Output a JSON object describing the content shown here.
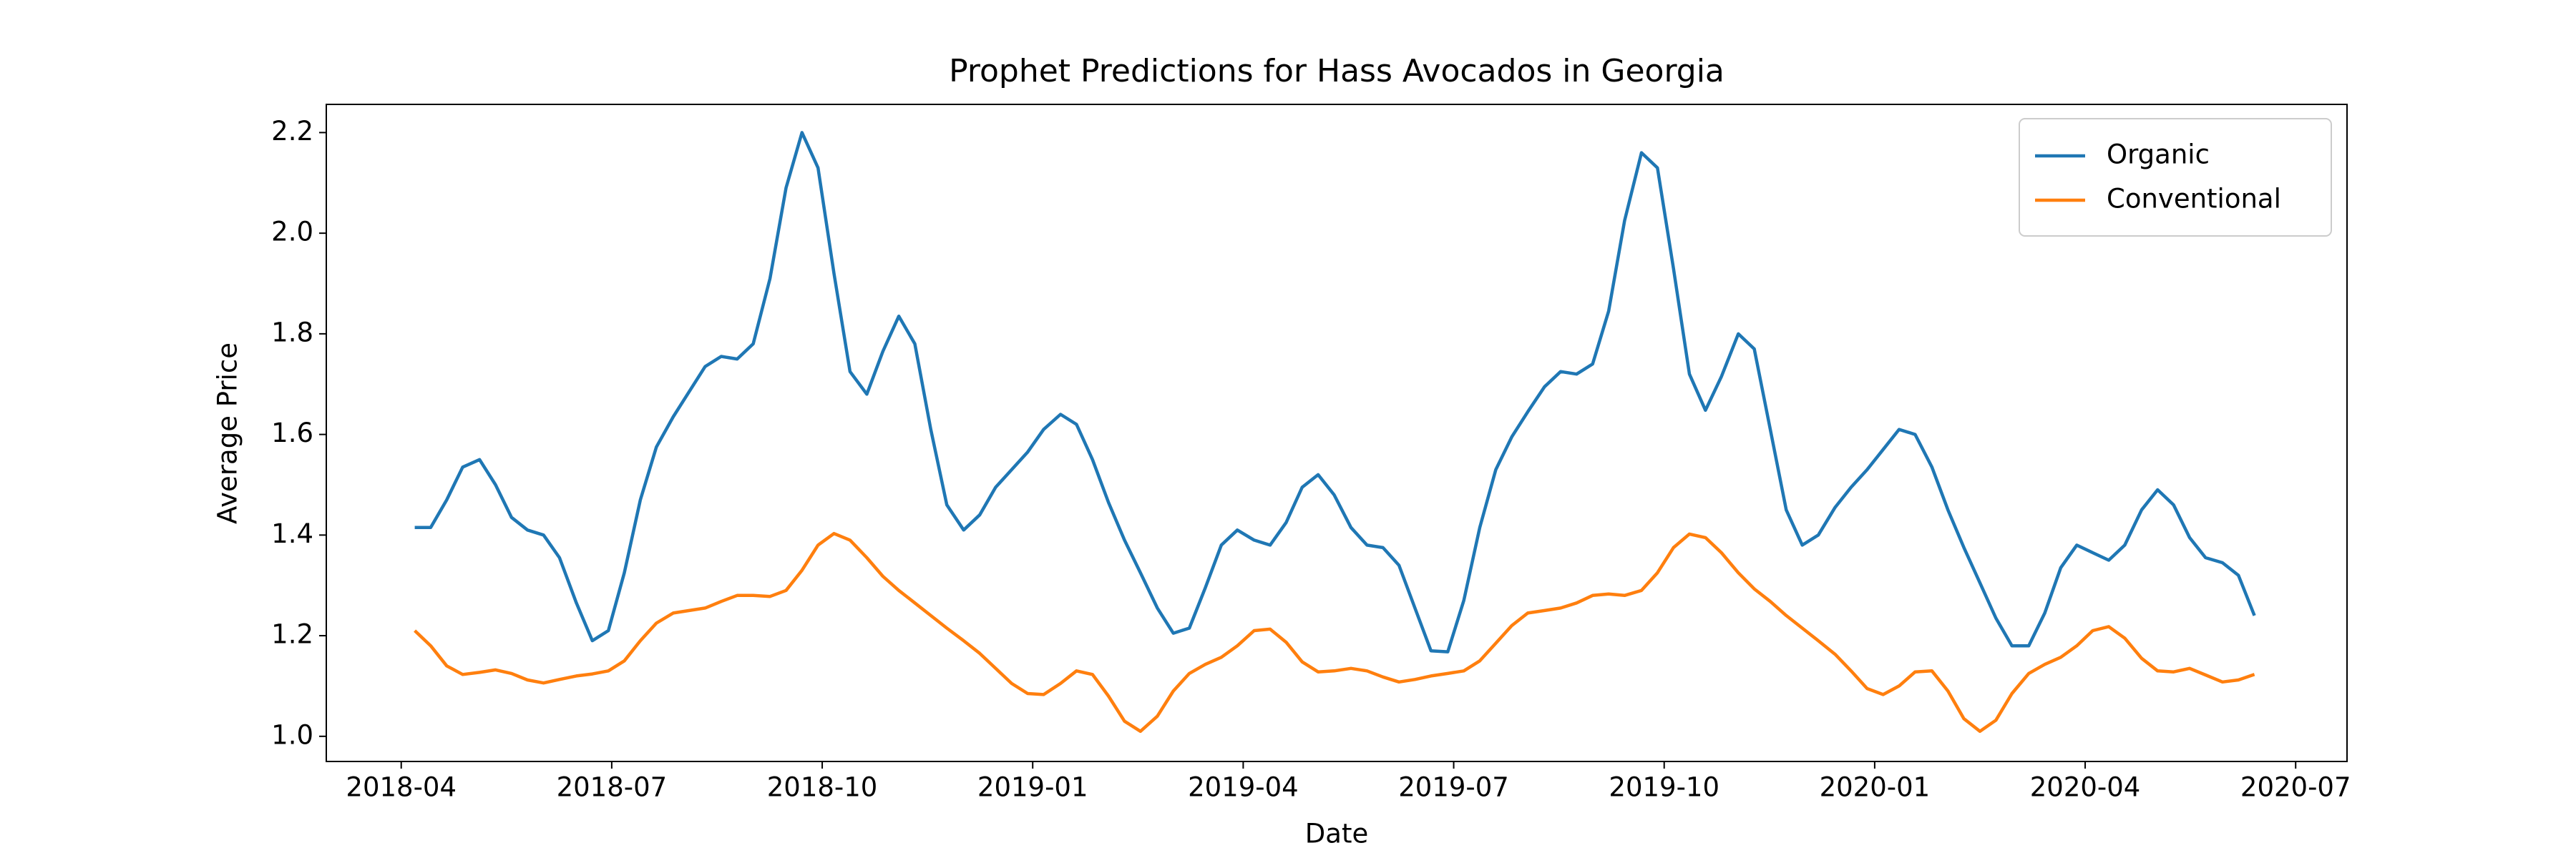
{
  "chart_data": {
    "type": "line",
    "title": "Prophet Predictions for Hass Avocados in Georgia",
    "x_label": "Date",
    "y_label": "Average Price",
    "x": [
      2018.266,
      2018.285,
      2018.304,
      2018.323,
      2018.343,
      2018.362,
      2018.381,
      2018.4,
      2018.419,
      2018.438,
      2018.458,
      2018.477,
      2018.496,
      2018.515,
      2018.534,
      2018.553,
      2018.573,
      2018.592,
      2018.611,
      2018.63,
      2018.649,
      2018.668,
      2018.688,
      2018.707,
      2018.726,
      2018.745,
      2018.764,
      2018.783,
      2018.803,
      2018.822,
      2018.841,
      2018.86,
      2018.879,
      2018.898,
      2018.918,
      2018.937,
      2018.956,
      2018.975,
      2018.994,
      2019.013,
      2019.033,
      2019.052,
      2019.071,
      2019.09,
      2019.109,
      2019.128,
      2019.148,
      2019.167,
      2019.186,
      2019.205,
      2019.224,
      2019.243,
      2019.263,
      2019.282,
      2019.301,
      2019.32,
      2019.339,
      2019.358,
      2019.378,
      2019.397,
      2019.416,
      2019.435,
      2019.454,
      2019.473,
      2019.493,
      2019.512,
      2019.531,
      2019.55,
      2019.569,
      2019.588,
      2019.608,
      2019.627,
      2019.646,
      2019.665,
      2019.684,
      2019.703,
      2019.723,
      2019.742,
      2019.761,
      2019.78,
      2019.799,
      2019.818,
      2019.838,
      2019.857,
      2019.876,
      2019.895,
      2019.914,
      2019.933,
      2019.953,
      2019.972,
      2019.991,
      2020.01,
      2020.029,
      2020.048,
      2020.068,
      2020.087,
      2020.106,
      2020.125,
      2020.144,
      2020.163,
      2020.183,
      2020.202,
      2020.221,
      2020.24,
      2020.259,
      2020.278,
      2020.297,
      2020.317,
      2020.336,
      2020.355,
      2020.374,
      2020.393,
      2020.413,
      2020.432,
      2020.451
    ],
    "series": [
      {
        "name": "Organic",
        "color": "#1f77b4",
        "values": [
          1.415,
          1.415,
          1.47,
          1.535,
          1.55,
          1.5,
          1.435,
          1.41,
          1.4,
          1.355,
          1.265,
          1.19,
          1.21,
          1.325,
          1.47,
          1.575,
          1.635,
          1.685,
          1.735,
          1.755,
          1.75,
          1.78,
          1.91,
          2.09,
          2.2,
          2.13,
          1.92,
          1.725,
          1.68,
          1.765,
          1.835,
          1.78,
          1.61,
          1.46,
          1.41,
          1.44,
          1.495,
          1.53,
          1.565,
          1.61,
          1.64,
          1.62,
          1.55,
          1.465,
          1.39,
          1.325,
          1.255,
          1.205,
          1.215,
          1.295,
          1.38,
          1.41,
          1.39,
          1.38,
          1.425,
          1.495,
          1.52,
          1.48,
          1.415,
          1.38,
          1.375,
          1.34,
          1.255,
          1.17,
          1.168,
          1.27,
          1.415,
          1.53,
          1.595,
          1.645,
          1.695,
          1.725,
          1.72,
          1.74,
          1.845,
          2.025,
          2.16,
          2.13,
          1.93,
          1.72,
          1.648,
          1.715,
          1.8,
          1.77,
          1.61,
          1.45,
          1.38,
          1.4,
          1.455,
          1.495,
          1.53,
          1.57,
          1.61,
          1.6,
          1.535,
          1.45,
          1.375,
          1.305,
          1.235,
          1.18,
          1.18,
          1.245,
          1.335,
          1.38,
          1.365,
          1.35,
          1.38,
          1.45,
          1.49,
          1.46,
          1.395,
          1.355,
          1.345,
          1.32,
          1.24
        ]
      },
      {
        "name": "Conventional",
        "color": "#ff7f0e",
        "values": [
          1.21,
          1.18,
          1.14,
          1.123,
          1.127,
          1.132,
          1.125,
          1.112,
          1.106,
          1.113,
          1.12,
          1.124,
          1.13,
          1.15,
          1.19,
          1.225,
          1.245,
          1.25,
          1.255,
          1.268,
          1.28,
          1.28,
          1.278,
          1.29,
          1.33,
          1.38,
          1.403,
          1.39,
          1.355,
          1.318,
          1.29,
          1.265,
          1.24,
          1.215,
          1.19,
          1.165,
          1.135,
          1.105,
          1.085,
          1.083,
          1.105,
          1.13,
          1.123,
          1.08,
          1.03,
          1.01,
          1.04,
          1.09,
          1.125,
          1.143,
          1.157,
          1.18,
          1.21,
          1.213,
          1.187,
          1.148,
          1.128,
          1.13,
          1.135,
          1.13,
          1.118,
          1.108,
          1.113,
          1.12,
          1.125,
          1.13,
          1.15,
          1.185,
          1.22,
          1.245,
          1.25,
          1.255,
          1.265,
          1.28,
          1.283,
          1.28,
          1.29,
          1.325,
          1.375,
          1.402,
          1.395,
          1.365,
          1.325,
          1.293,
          1.268,
          1.24,
          1.215,
          1.19,
          1.163,
          1.13,
          1.095,
          1.083,
          1.1,
          1.128,
          1.13,
          1.09,
          1.035,
          1.01,
          1.032,
          1.085,
          1.125,
          1.143,
          1.157,
          1.18,
          1.21,
          1.218,
          1.195,
          1.155,
          1.13,
          1.128,
          1.135,
          1.122,
          1.108,
          1.112,
          1.123
        ]
      }
    ],
    "xlim": [
      2018.161,
      2020.561
    ],
    "xticks": [
      {
        "value": 2018.25,
        "label": "2018-04"
      },
      {
        "value": 2018.5,
        "label": "2018-07"
      },
      {
        "value": 2018.75,
        "label": "2018-10"
      },
      {
        "value": 2019.0,
        "label": "2019-01"
      },
      {
        "value": 2019.25,
        "label": "2019-04"
      },
      {
        "value": 2019.5,
        "label": "2019-07"
      },
      {
        "value": 2019.75,
        "label": "2019-10"
      },
      {
        "value": 2020.0,
        "label": "2020-01"
      },
      {
        "value": 2020.25,
        "label": "2020-04"
      },
      {
        "value": 2020.5,
        "label": "2020-07"
      }
    ],
    "ylim": [
      0.95,
      2.256
    ],
    "yticks": [
      {
        "value": 1.0,
        "label": "1.0"
      },
      {
        "value": 1.2,
        "label": "1.2"
      },
      {
        "value": 1.4,
        "label": "1.4"
      },
      {
        "value": 1.6,
        "label": "1.6"
      },
      {
        "value": 1.8,
        "label": "1.8"
      },
      {
        "value": 2.0,
        "label": "2.0"
      },
      {
        "value": 2.2,
        "label": "2.2"
      }
    ],
    "grid": false,
    "legend": "upper-right"
  }
}
